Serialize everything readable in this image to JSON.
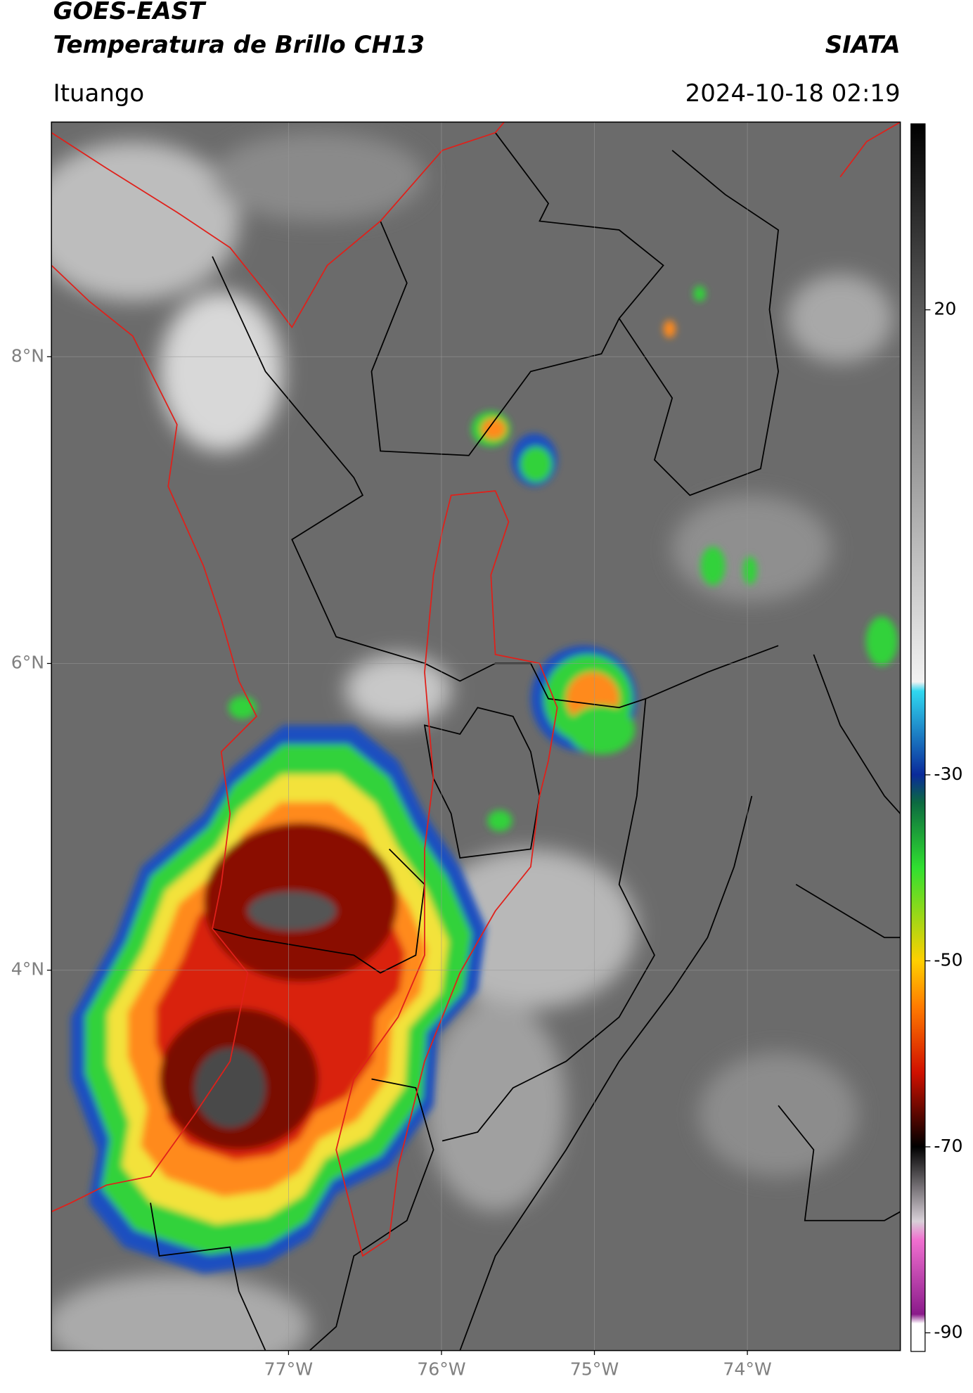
{
  "header": {
    "title": "GOES-EAST",
    "subtitle": "Temperatura de Brillo CH13",
    "source": "SIATA",
    "location": "Ituango",
    "datetime": "2024-10-18 02:19"
  },
  "map": {
    "lat_range": [
      1.52,
      9.53
    ],
    "lon_range": [
      -78.55,
      -73.0
    ],
    "lat_ticks": [
      {
        "value": 8,
        "label": "8°N"
      },
      {
        "value": 6,
        "label": "6°N"
      },
      {
        "value": 4,
        "label": "4°N"
      }
    ],
    "lon_ticks": [
      {
        "value": -77,
        "label": "77°W"
      },
      {
        "value": -76,
        "label": "76°W"
      },
      {
        "value": -75,
        "label": "75°W"
      },
      {
        "value": -74,
        "label": "74°W"
      }
    ],
    "grid": true
  },
  "colorbar": {
    "range": [
      -92,
      40
    ],
    "ticks": [
      20,
      -30,
      -50,
      -70,
      -90
    ],
    "colormap": [
      {
        "value": 40,
        "color": "#000000"
      },
      {
        "value": 20,
        "color": "#5a5a5a"
      },
      {
        "value": -20,
        "color": "#f2f2f2"
      },
      {
        "value": -21,
        "color": "#30d8f0"
      },
      {
        "value": -30,
        "color": "#0a2a9a"
      },
      {
        "value": -33,
        "color": "#0c6a40"
      },
      {
        "value": -40,
        "color": "#30e030"
      },
      {
        "value": -50,
        "color": "#ffd000"
      },
      {
        "value": -55,
        "color": "#ff7a00"
      },
      {
        "value": -62,
        "color": "#d01000"
      },
      {
        "value": -70,
        "color": "#000000"
      },
      {
        "value": -78,
        "color": "#d8d0d8"
      },
      {
        "value": -80,
        "color": "#f070d0"
      },
      {
        "value": -88,
        "color": "#8a1a8a"
      },
      {
        "value": -89,
        "color": "#ffffff"
      },
      {
        "value": -92,
        "color": "#ffffff"
      }
    ]
  }
}
